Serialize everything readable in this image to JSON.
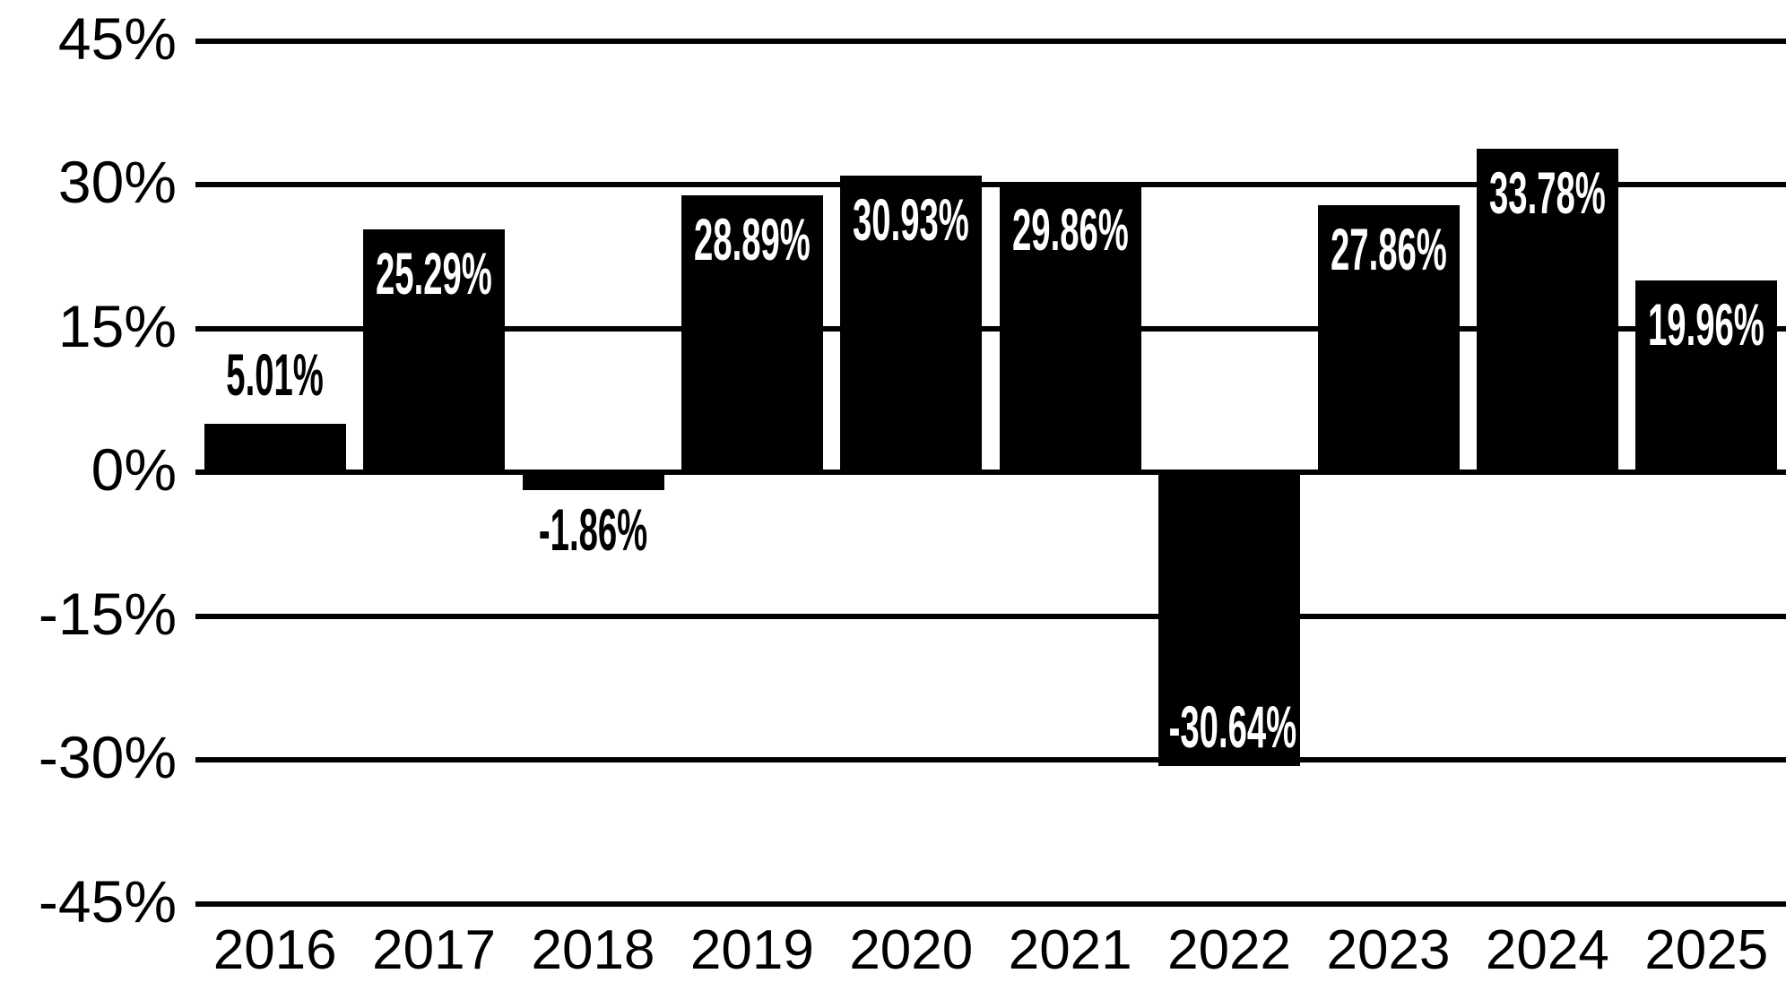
{
  "chart_data": {
    "type": "bar",
    "title": "",
    "xlabel": "",
    "ylabel": "",
    "categories": [
      "2016",
      "2017",
      "2018",
      "2019",
      "2020",
      "2021",
      "2022",
      "2023",
      "2024",
      "2025"
    ],
    "values": [
      5.01,
      25.29,
      -1.86,
      28.89,
      30.93,
      29.86,
      -30.64,
      27.86,
      33.78,
      19.96
    ],
    "value_labels": [
      "5.01%",
      "25.29%",
      "-1.86%",
      "28.89%",
      "30.93%",
      "29.86%",
      "-30.64%",
      "27.86%",
      "33.78%",
      "19.96%"
    ],
    "y_axis": {
      "tick_labels": [
        "45%",
        "30%",
        "15%",
        "0%",
        "-15%",
        "-30%",
        "-45%"
      ],
      "tick_values": [
        45,
        30,
        15,
        0,
        -15,
        -30,
        -45
      ],
      "min": -45,
      "max": 45,
      "step": 15
    },
    "grid": true,
    "legend": false,
    "colors": {
      "background": "#ffffff",
      "bar": "#000000",
      "gridline": "#000000",
      "axis_text": "#000000",
      "label_inside": "#ffffff",
      "label_outside": "#000000"
    }
  }
}
